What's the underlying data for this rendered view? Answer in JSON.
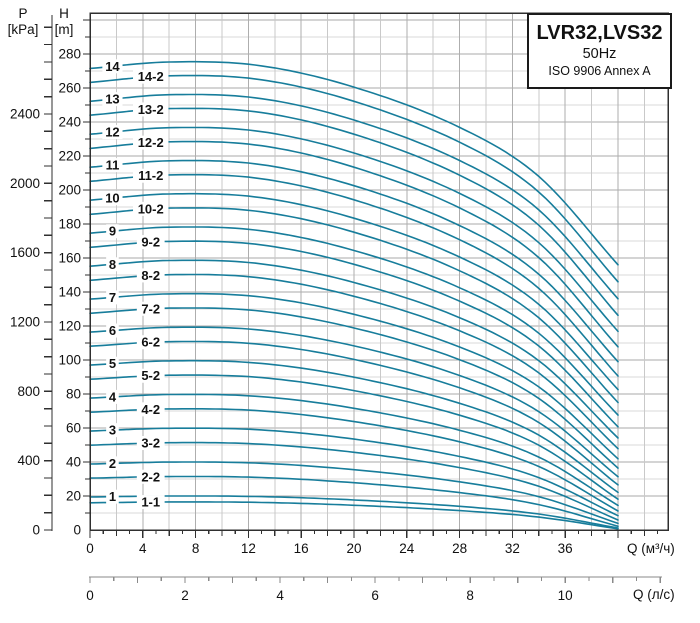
{
  "title_box": {
    "model": "LVR32,LVS32",
    "frequency": "50Hz",
    "standard": "ISO 9906 Annex A"
  },
  "axes": {
    "pressure": {
      "name": "P",
      "unit": "[kPa]",
      "tick_step_kpa": 100,
      "labels": [
        "0",
        "400",
        "800",
        "1200",
        "1600",
        "2000",
        "2400"
      ]
    },
    "head": {
      "name": "H",
      "unit": "[m]",
      "tick_step_m": 10,
      "labels": [
        "0",
        "20",
        "40",
        "60",
        "80",
        "100",
        "120",
        "140",
        "160",
        "180",
        "200",
        "220",
        "240",
        "260",
        "280"
      ]
    },
    "flow_m3h": {
      "axis_label": "Q (м³/ч)",
      "tick_labels": [
        "0",
        "4",
        "8",
        "12",
        "16",
        "20",
        "24",
        "28",
        "32",
        "36"
      ]
    },
    "flow_ls": {
      "axis_label": "Q (л/с)",
      "tick_labels": [
        "0",
        "2",
        "4",
        "6",
        "8",
        "10"
      ]
    }
  },
  "colors": {
    "curve": "#177d9b",
    "frame": "#2f2f2f",
    "grid_major": "#a9a9a9",
    "grid_minor": "#d8d8d8",
    "ls_axis": "#8a8a8a"
  },
  "chart_data": {
    "type": "line",
    "title": "LVR32,LVS32 50Hz pump performance curves (ISO 9906 Annex A)",
    "xlabel_primary": "Q (м³/ч)",
    "xlabel_secondary": "Q (л/с)",
    "ylabel_primary": "H [m]",
    "ylabel_secondary": "P [kPa]",
    "x_range_m3h": [
      0,
      43.8
    ],
    "y_range_m": [
      0,
      304
    ],
    "q_curve_end_m3h": 40,
    "grid": "on",
    "shape_profile": {
      "comment": "fraction of (h0-h40) added to h0 as a function of t = Q/40",
      "t": [
        0,
        0.15,
        0.32,
        0.5,
        0.7,
        0.85,
        1
      ],
      "dh_fraction": [
        0,
        0.033,
        0.015,
        -0.095,
        -0.3,
        -0.55,
        -1.0
      ]
    },
    "series": [
      {
        "label": "14",
        "h0_m": 271.5,
        "h40_m": 156.0
      },
      {
        "label": "14-2",
        "h0_m": 263.3,
        "h40_m": 146.0
      },
      {
        "label": "13",
        "h0_m": 252.2,
        "h40_m": 136.0
      },
      {
        "label": "13-2",
        "h0_m": 244.0,
        "h40_m": 126.3
      },
      {
        "label": "12",
        "h0_m": 232.8,
        "h40_m": 116.8
      },
      {
        "label": "12-2",
        "h0_m": 224.5,
        "h40_m": 107.7
      },
      {
        "label": "11",
        "h0_m": 213.4,
        "h40_m": 99.0
      },
      {
        "label": "11-2",
        "h0_m": 205.1,
        "h40_m": 90.6
      },
      {
        "label": "10",
        "h0_m": 194.0,
        "h40_m": 82.6
      },
      {
        "label": "10-2",
        "h0_m": 185.7,
        "h40_m": 75.0
      },
      {
        "label": "9",
        "h0_m": 174.6,
        "h40_m": 67.6
      },
      {
        "label": "9-2",
        "h0_m": 166.3,
        "h40_m": 60.7
      },
      {
        "label": "8",
        "h0_m": 155.2,
        "h40_m": 54.1
      },
      {
        "label": "8-2",
        "h0_m": 146.9,
        "h40_m": 47.8
      },
      {
        "label": "7",
        "h0_m": 135.8,
        "h40_m": 41.9
      },
      {
        "label": "7-2",
        "h0_m": 127.5,
        "h40_m": 36.4
      },
      {
        "label": "6",
        "h0_m": 116.4,
        "h40_m": 31.3
      },
      {
        "label": "6-2",
        "h0_m": 108.1,
        "h40_m": 26.5
      },
      {
        "label": "5",
        "h0_m": 97.0,
        "h40_m": 22.1
      },
      {
        "label": "5-2",
        "h0_m": 88.7,
        "h40_m": 18.1
      },
      {
        "label": "4",
        "h0_m": 77.6,
        "h40_m": 14.5
      },
      {
        "label": "4-2",
        "h0_m": 69.3,
        "h40_m": 11.2
      },
      {
        "label": "3",
        "h0_m": 58.2,
        "h40_m": 8.4
      },
      {
        "label": "3-2",
        "h0_m": 49.9,
        "h40_m": 5.9
      },
      {
        "label": "2",
        "h0_m": 38.8,
        "h40_m": 3.9
      },
      {
        "label": "2-2",
        "h0_m": 30.5,
        "h40_m": 2.2
      },
      {
        "label": "1",
        "h0_m": 19.4,
        "h40_m": 1.2
      },
      {
        "label": "1-1",
        "h0_m": 16.0,
        "h40_m": 0.7
      }
    ]
  }
}
